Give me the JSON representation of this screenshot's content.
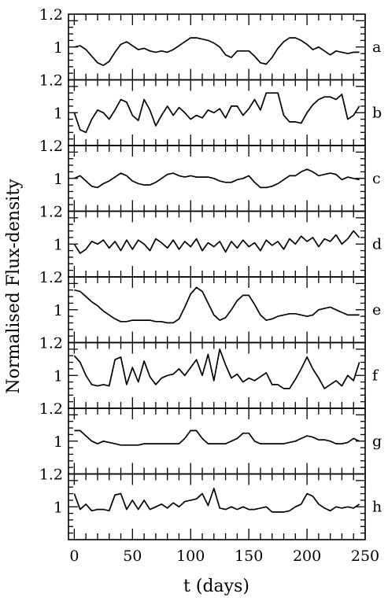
{
  "chart_data": {
    "type": "line",
    "xlabel": "t (days)",
    "ylabel": "Normalised Flux-density",
    "xlim": [
      -5,
      250
    ],
    "x_ticks": [
      0,
      50,
      100,
      150,
      200,
      250
    ],
    "x_tick_labels": [
      "0",
      "50",
      "100",
      "150",
      "200",
      "250"
    ],
    "ylim_per_panel": [
      0.75,
      1.25
    ],
    "y_tick_labels": [
      "1.2",
      "1"
    ],
    "grid": false,
    "layout": "8 vertically stacked panels sharing x axis",
    "series": [
      {
        "name": "a",
        "x": [
          0,
          5,
          10,
          15,
          20,
          25,
          30,
          35,
          40,
          45,
          50,
          55,
          60,
          65,
          70,
          75,
          80,
          85,
          90,
          95,
          100,
          105,
          110,
          115,
          120,
          125,
          130,
          135,
          140,
          145,
          150,
          155,
          160,
          165,
          170,
          175,
          180,
          185,
          190,
          195,
          200,
          205,
          210,
          215,
          220,
          225,
          230,
          235,
          240,
          245
        ],
        "values": [
          1.0,
          1.01,
          0.98,
          0.93,
          0.88,
          0.86,
          0.89,
          0.96,
          1.02,
          1.04,
          1.01,
          0.98,
          0.99,
          0.97,
          0.96,
          0.97,
          0.96,
          0.98,
          1.01,
          1.04,
          1.07,
          1.07,
          1.06,
          1.05,
          1.03,
          1.0,
          0.94,
          0.92,
          0.97,
          0.97,
          0.97,
          0.93,
          0.88,
          0.87,
          0.92,
          0.99,
          1.04,
          1.07,
          1.07,
          1.05,
          1.02,
          0.98,
          1.0,
          0.97,
          0.94,
          0.97,
          0.96,
          0.95,
          0.96,
          0.96
        ]
      },
      {
        "name": "b",
        "x": [
          0,
          5,
          10,
          15,
          20,
          25,
          30,
          35,
          40,
          45,
          50,
          55,
          60,
          65,
          70,
          75,
          80,
          85,
          90,
          95,
          100,
          105,
          110,
          115,
          120,
          125,
          130,
          135,
          140,
          145,
          150,
          155,
          160,
          165,
          170,
          175,
          180,
          185,
          190,
          195,
          200,
          205,
          210,
          215,
          220,
          225,
          230,
          235,
          240,
          245
        ],
        "values": [
          1.0,
          0.87,
          0.85,
          0.95,
          1.02,
          1.0,
          0.95,
          1.02,
          1.1,
          1.08,
          0.98,
          0.94,
          1.1,
          1.02,
          0.9,
          0.98,
          1.05,
          0.98,
          1.04,
          1.0,
          0.95,
          0.98,
          0.96,
          1.02,
          1.0,
          1.03,
          0.96,
          1.05,
          1.05,
          0.98,
          1.03,
          1.1,
          1.02,
          1.15,
          1.15,
          1.15,
          0.98,
          0.93,
          0.93,
          0.92,
          1.0,
          1.06,
          1.1,
          1.12,
          1.12,
          1.1,
          1.14,
          0.95,
          0.98,
          1.05
        ]
      },
      {
        "name": "c",
        "x": [
          0,
          5,
          10,
          15,
          20,
          25,
          30,
          35,
          40,
          45,
          50,
          55,
          60,
          65,
          70,
          75,
          80,
          85,
          90,
          95,
          100,
          105,
          110,
          115,
          120,
          125,
          130,
          135,
          140,
          145,
          150,
          155,
          160,
          165,
          170,
          175,
          180,
          185,
          190,
          195,
          200,
          205,
          210,
          215,
          220,
          225,
          230,
          235,
          240,
          245
        ],
        "values": [
          1.0,
          1.02,
          0.98,
          0.94,
          0.93,
          0.96,
          0.98,
          1.01,
          1.04,
          1.02,
          0.98,
          0.96,
          0.95,
          0.95,
          0.97,
          1.0,
          1.03,
          1.04,
          1.02,
          1.01,
          1.02,
          1.01,
          1.01,
          1.01,
          1.0,
          0.98,
          0.97,
          0.97,
          0.99,
          1.0,
          1.02,
          0.97,
          0.93,
          0.93,
          0.94,
          0.96,
          0.99,
          1.02,
          1.02,
          1.05,
          1.07,
          1.05,
          1.02,
          1.03,
          1.04,
          1.03,
          0.99,
          1.01,
          1.0,
          0.99
        ]
      },
      {
        "name": "d",
        "x": [
          0,
          5,
          10,
          15,
          20,
          25,
          30,
          35,
          40,
          45,
          50,
          55,
          60,
          65,
          70,
          75,
          80,
          85,
          90,
          95,
          100,
          105,
          110,
          115,
          120,
          125,
          130,
          135,
          140,
          145,
          150,
          155,
          160,
          165,
          170,
          175,
          180,
          185,
          190,
          195,
          200,
          205,
          210,
          215,
          220,
          225,
          230,
          235,
          240,
          245
        ],
        "values": [
          1.0,
          0.93,
          0.96,
          1.02,
          1.0,
          1.03,
          0.97,
          1.02,
          0.95,
          1.03,
          0.96,
          1.03,
          1.0,
          0.95,
          1.04,
          1.01,
          0.97,
          1.03,
          0.96,
          1.02,
          0.98,
          1.04,
          0.95,
          1.01,
          0.98,
          1.02,
          0.94,
          1.02,
          0.97,
          1.03,
          0.98,
          1.01,
          0.95,
          1.03,
          0.99,
          1.02,
          0.96,
          1.04,
          1.0,
          1.06,
          1.02,
          1.05,
          0.98,
          1.04,
          1.02,
          1.07,
          1.0,
          1.04,
          1.1,
          1.05
        ]
      },
      {
        "name": "e",
        "x": [
          0,
          5,
          10,
          15,
          20,
          25,
          30,
          35,
          40,
          45,
          50,
          55,
          60,
          65,
          70,
          75,
          80,
          85,
          90,
          95,
          100,
          105,
          110,
          115,
          120,
          125,
          130,
          135,
          140,
          145,
          150,
          155,
          160,
          165,
          170,
          175,
          180,
          185,
          190,
          195,
          200,
          205,
          210,
          215,
          220,
          225,
          230,
          235,
          240,
          245
        ],
        "values": [
          1.15,
          1.14,
          1.1,
          1.06,
          1.03,
          0.99,
          0.96,
          0.93,
          0.91,
          0.91,
          0.92,
          0.92,
          0.92,
          0.92,
          0.91,
          0.91,
          0.9,
          0.9,
          0.93,
          1.02,
          1.12,
          1.17,
          1.14,
          1.05,
          0.96,
          0.92,
          0.94,
          1.0,
          1.07,
          1.11,
          1.11,
          1.04,
          0.96,
          0.92,
          0.93,
          0.95,
          0.96,
          0.97,
          0.97,
          0.96,
          0.95,
          0.96,
          1.0,
          1.01,
          1.02,
          1.0,
          0.98,
          0.96,
          0.96,
          0.96
        ]
      },
      {
        "name": "f",
        "x": [
          0,
          5,
          10,
          15,
          20,
          25,
          30,
          35,
          40,
          45,
          50,
          55,
          60,
          65,
          70,
          75,
          80,
          85,
          90,
          95,
          100,
          105,
          110,
          115,
          120,
          125,
          130,
          135,
          140,
          145,
          150,
          155,
          160,
          165,
          170,
          175,
          180,
          185,
          190,
          195,
          200,
          205,
          210,
          215,
          220,
          225,
          230,
          235,
          240,
          245
        ],
        "values": [
          1.15,
          1.1,
          1.0,
          0.93,
          0.92,
          0.93,
          0.92,
          1.12,
          1.14,
          0.93,
          1.06,
          0.95,
          1.11,
          0.99,
          0.93,
          0.98,
          1.0,
          1.01,
          1.05,
          1.0,
          1.06,
          1.12,
          1.0,
          1.16,
          0.96,
          1.2,
          1.08,
          0.98,
          1.01,
          0.95,
          0.98,
          0.96,
          0.99,
          1.02,
          0.93,
          0.93,
          0.9,
          0.9,
          0.97,
          1.05,
          1.14,
          1.05,
          0.98,
          0.9,
          0.93,
          0.96,
          0.92,
          1.0,
          0.96,
          1.1
        ]
      },
      {
        "name": "g",
        "x": [
          0,
          5,
          10,
          15,
          20,
          25,
          30,
          35,
          40,
          45,
          50,
          55,
          60,
          65,
          70,
          75,
          80,
          85,
          90,
          95,
          100,
          105,
          110,
          115,
          120,
          125,
          130,
          135,
          140,
          145,
          150,
          155,
          160,
          165,
          170,
          175,
          180,
          185,
          190,
          195,
          200,
          205,
          210,
          215,
          220,
          225,
          230,
          235,
          240,
          245
        ],
        "values": [
          1.08,
          1.08,
          1.04,
          1.0,
          0.98,
          1.0,
          0.99,
          0.98,
          0.97,
          0.97,
          0.97,
          0.97,
          0.98,
          0.98,
          0.98,
          0.98,
          0.98,
          0.98,
          0.98,
          1.02,
          1.08,
          1.08,
          1.02,
          0.98,
          0.98,
          0.98,
          0.98,
          1.0,
          1.02,
          1.06,
          1.06,
          1.0,
          0.98,
          0.98,
          0.98,
          0.98,
          0.98,
          0.99,
          1.0,
          1.02,
          1.04,
          1.03,
          1.01,
          1.01,
          1.0,
          0.98,
          0.98,
          0.99,
          1.02,
          1.0
        ]
      },
      {
        "name": "h",
        "x": [
          0,
          5,
          10,
          15,
          20,
          25,
          30,
          35,
          40,
          45,
          50,
          55,
          60,
          65,
          70,
          75,
          80,
          85,
          90,
          95,
          100,
          105,
          110,
          115,
          120,
          125,
          130,
          135,
          140,
          145,
          150,
          155,
          160,
          165,
          170,
          175,
          180,
          185,
          190,
          195,
          200,
          205,
          210,
          215,
          220,
          225,
          230,
          235,
          240,
          245
        ],
        "values": [
          1.1,
          0.98,
          1.02,
          0.97,
          0.98,
          0.98,
          0.97,
          1.09,
          1.1,
          0.98,
          1.05,
          0.98,
          1.05,
          0.98,
          1.0,
          1.02,
          0.99,
          1.03,
          1.0,
          1.04,
          1.05,
          1.06,
          1.1,
          1.01,
          1.14,
          0.99,
          0.98,
          1.0,
          0.98,
          1.0,
          0.98,
          0.98,
          0.99,
          1.0,
          0.96,
          0.96,
          0.96,
          0.97,
          1.0,
          1.02,
          1.1,
          1.08,
          1.02,
          0.99,
          0.97,
          1.0,
          0.99,
          1.0,
          0.99,
          1.02
        ]
      }
    ]
  }
}
